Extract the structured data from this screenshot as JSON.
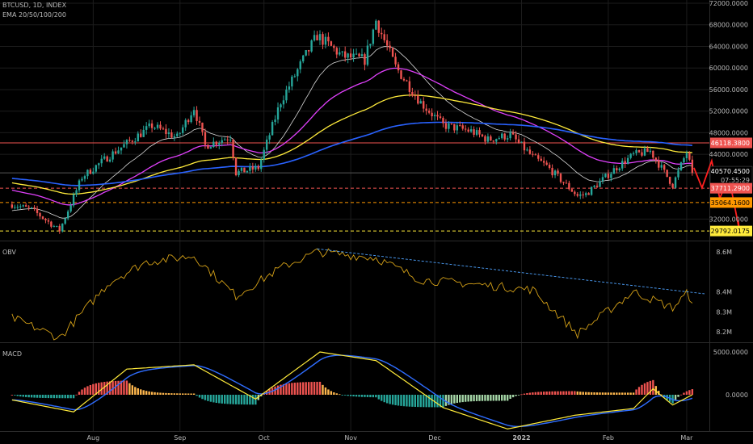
{
  "header": {
    "symbol_line": "BTCUSD, 1D, INDEX",
    "indicator_line": "EMA 20/50/100/200"
  },
  "panes": {
    "obv_label": "OBV",
    "macd_label": "MACD"
  },
  "colors": {
    "background": "#000000",
    "grid": "#1c1c1c",
    "up": "#26a69a",
    "down": "#ef5350",
    "ema20": "#d9d9d9",
    "ema50": "#e040fb",
    "ema100": "#ffeb3b",
    "ema200": "#2962ff",
    "obv": "#d4a017",
    "trend": "#4fa3ff",
    "macd_line": "#2f6dff",
    "signal": "#ffeb3b",
    "hist_up_strong": "#26a69a",
    "hist_up_weak": "#b2dfdb",
    "hist_down_strong": "#ef5350",
    "hist_down_weak": "#ffcdd2",
    "arrow": "#ff1f1f"
  },
  "chart_data": [
    {
      "type": "candlestick",
      "title": "BTCUSD, 1D, INDEX",
      "x_ticks": [
        "Aug",
        "Sep",
        "Oct",
        "Nov",
        "Dec",
        "2022",
        "Feb",
        "Mar"
      ],
      "y_ticks": [
        "72000.0000",
        "68000.0000",
        "64000.0000",
        "60000.0000",
        "56000.0000",
        "52000.0000",
        "48000.0000",
        "44000.0000",
        "32000.0000"
      ],
      "ylim": [
        29000,
        72500
      ],
      "approx_close_path": [
        [
          "2021-07-03",
          34700
        ],
        [
          "2021-07-10",
          33800
        ],
        [
          "2021-07-20",
          29900
        ],
        [
          "2021-07-28",
          39800
        ],
        [
          "2021-08-07",
          43800
        ],
        [
          "2021-08-14",
          46400
        ],
        [
          "2021-08-22",
          49300
        ],
        [
          "2021-08-31",
          47100
        ],
        [
          "2021-09-06",
          52700
        ],
        [
          "2021-09-10",
          45600
        ],
        [
          "2021-09-19",
          47300
        ],
        [
          "2021-09-21",
          40600
        ],
        [
          "2021-09-29",
          41500
        ],
        [
          "2021-10-07",
          53800
        ],
        [
          "2021-10-15",
          61500
        ],
        [
          "2021-10-20",
          66000
        ],
        [
          "2021-10-29",
          62200
        ],
        [
          "2021-11-06",
          61500
        ],
        [
          "2021-11-10",
          68800
        ],
        [
          "2021-11-17",
          60200
        ],
        [
          "2021-11-26",
          53600
        ],
        [
          "2021-12-04",
          49400
        ],
        [
          "2021-12-14",
          48300
        ],
        [
          "2021-12-20",
          46700
        ],
        [
          "2021-12-28",
          47600
        ],
        [
          "2022-01-05",
          43500
        ],
        [
          "2022-01-10",
          41800
        ],
        [
          "2022-01-21",
          36300
        ],
        [
          "2022-01-24",
          36600
        ],
        [
          "2022-02-04",
          41600
        ],
        [
          "2022-02-10",
          43900
        ],
        [
          "2022-02-16",
          44600
        ],
        [
          "2022-02-24",
          38300
        ],
        [
          "2022-02-28",
          43200
        ],
        [
          "2022-03-01",
          44400
        ],
        [
          "2022-03-03",
          40570
        ]
      ],
      "horizontal_levels": [
        "46118.3800",
        "37711.2900",
        "35064.1600",
        "29792.0175"
      ],
      "last_price": "40570.4500",
      "countdown": "07:55:29",
      "ema_series": [
        "EMA 20",
        "EMA 50",
        "EMA 100",
        "EMA 200"
      ],
      "projection": "zig-zag arrow pointing down toward 29792"
    },
    {
      "type": "line",
      "title": "OBV",
      "y_ticks": [
        "8.6M",
        "8.4M",
        "8.3M",
        "8.2M"
      ],
      "ylim": [
        8.14,
        8.62
      ],
      "approx_path": [
        [
          "2021-07-03",
          8.27
        ],
        [
          "2021-07-20",
          8.17
        ],
        [
          "2021-08-07",
          8.45
        ],
        [
          "2021-08-20",
          8.55
        ],
        [
          "2021-09-06",
          8.58
        ],
        [
          "2021-09-21",
          8.38
        ],
        [
          "2021-10-07",
          8.52
        ],
        [
          "2021-10-20",
          8.6
        ],
        [
          "2021-11-10",
          8.57
        ],
        [
          "2021-11-26",
          8.46
        ],
        [
          "2021-12-14",
          8.44
        ],
        [
          "2022-01-05",
          8.41
        ],
        [
          "2022-01-21",
          8.19
        ],
        [
          "2022-02-10",
          8.4
        ],
        [
          "2022-02-24",
          8.32
        ],
        [
          "2022-03-01",
          8.39
        ],
        [
          "2022-03-03",
          8.36
        ]
      ],
      "trendline": "descending dashed line from the October high to the March high"
    },
    {
      "type": "macd",
      "title": "MACD",
      "y_ticks": [
        "5000.0000",
        "0.0000"
      ],
      "ylim": [
        -4300,
        5600
      ],
      "approx_macd_path": [
        [
          "2021-07-03",
          -600
        ],
        [
          "2021-07-25",
          -2000
        ],
        [
          "2021-08-13",
          3000
        ],
        [
          "2021-09-06",
          3500
        ],
        [
          "2021-09-28",
          -500
        ],
        [
          "2021-10-21",
          5000
        ],
        [
          "2021-11-10",
          4000
        ],
        [
          "2021-12-04",
          -1500
        ],
        [
          "2021-12-27",
          -4000
        ],
        [
          "2022-01-20",
          -2400
        ],
        [
          "2022-02-10",
          -1600
        ],
        [
          "2022-02-17",
          700
        ],
        [
          "2022-02-24",
          -1200
        ],
        [
          "2022-03-03",
          0
        ]
      ]
    }
  ]
}
